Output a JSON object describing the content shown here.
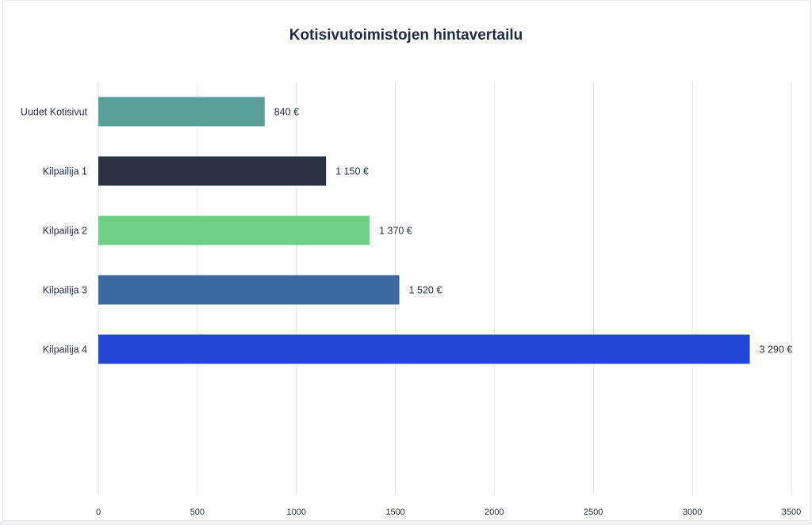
{
  "chart_data": {
    "type": "bar",
    "orientation": "horizontal",
    "title": "Kotisivutoimistojen hintavertailu",
    "categories": [
      "Uudet Kotisivut",
      "Kilpailija 1",
      "Kilpailija 2",
      "Kilpailija 3",
      "Kilpailija 4"
    ],
    "values": [
      840,
      1150,
      1370,
      1520,
      3290
    ],
    "data_labels": [
      "840 €",
      "1 150 €",
      "1 370 €",
      "1 520 €",
      "3 290 €"
    ],
    "colors": [
      "#5a9e98",
      "#2a3142",
      "#6fcf87",
      "#3a6aa0",
      "#2148d6"
    ],
    "xlim": [
      0,
      3500
    ],
    "xticks": [
      "0",
      "500",
      "1000",
      "1500",
      "2000",
      "2500",
      "3000",
      "3500"
    ],
    "xlabel": "",
    "ylabel": "",
    "grid": "vertical",
    "legend": "none"
  }
}
